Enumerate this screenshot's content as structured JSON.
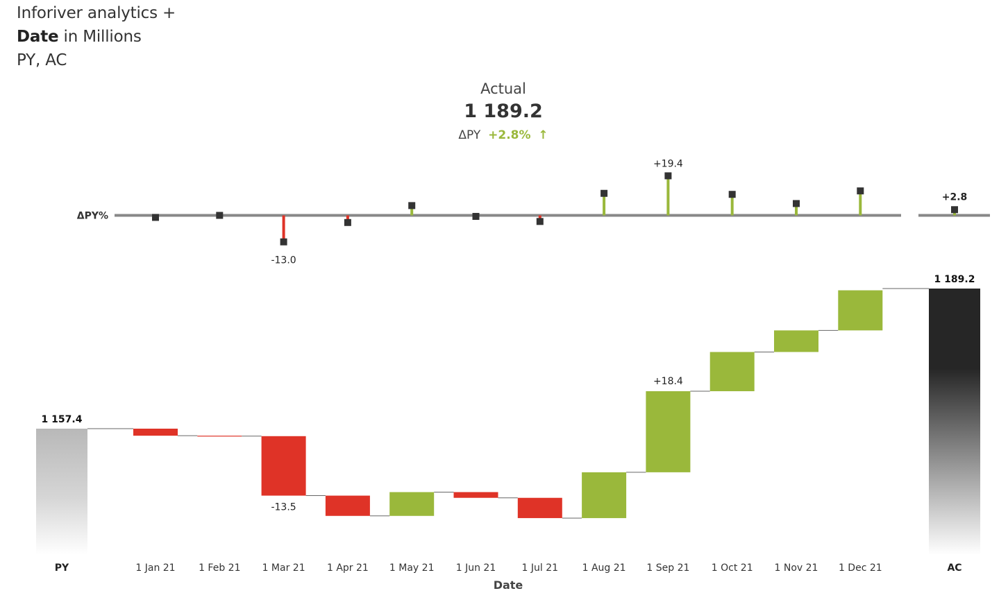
{
  "header": {
    "line1": "Inforiver analytics +",
    "line2_bold": "Date",
    "line2_rest": " in Millions",
    "line3": "PY, AC"
  },
  "kpi": {
    "label": "Actual",
    "value": "1 189.2",
    "delta_label": "ΔPY",
    "delta_value": "+2.8%",
    "delta_arrow": "↑"
  },
  "colors": {
    "positive": "#9ab83b",
    "negative": "#df3327",
    "axis": "#888888",
    "marker": "#333333",
    "py_bar": "#bfbfbf",
    "ac_bar": "#262626"
  },
  "chart_data": [
    {
      "type": "lollipop",
      "ylabel": "ΔPY%",
      "categories": [
        "1 Jan 21",
        "1 Feb 21",
        "1 Mar 21",
        "1 Apr 21",
        "1 May 21",
        "1 Jun 21",
        "1 Jul 21",
        "1 Aug 21",
        "1 Sep 21",
        "1 Oct 21",
        "1 Nov 21",
        "1 Dec 21"
      ],
      "values": [
        -1.0,
        0.0,
        -13.0,
        -3.5,
        4.8,
        -0.5,
        -3.0,
        10.8,
        19.4,
        10.3,
        5.8,
        12.0
      ],
      "data_labels": {
        "1 Mar 21": "-13.0",
        "1 Sep 21": "+19.4"
      },
      "total": {
        "category": "AC",
        "value": 2.8,
        "label": "+2.8"
      }
    },
    {
      "type": "waterfall",
      "xlabel": "Date",
      "start": {
        "category": "PY",
        "value": 1157.4,
        "label": "1 157.4"
      },
      "categories": [
        "1 Jan 21",
        "1 Feb 21",
        "1 Mar 21",
        "1 Apr 21",
        "1 May 21",
        "1 Jun 21",
        "1 Jul 21",
        "1 Aug 21",
        "1 Sep 21",
        "1 Oct 21",
        "1 Nov 21",
        "1 Dec 21"
      ],
      "values": [
        -1.6,
        -0.1,
        -13.5,
        -4.6,
        5.4,
        -1.3,
        -4.6,
        10.4,
        18.4,
        8.9,
        4.9,
        9.1
      ],
      "data_labels": {
        "1 Mar 21": "-13.5",
        "1 Sep 21": "+18.4"
      },
      "end": {
        "category": "AC",
        "value": 1189.2,
        "label": "1 189.2"
      }
    }
  ]
}
